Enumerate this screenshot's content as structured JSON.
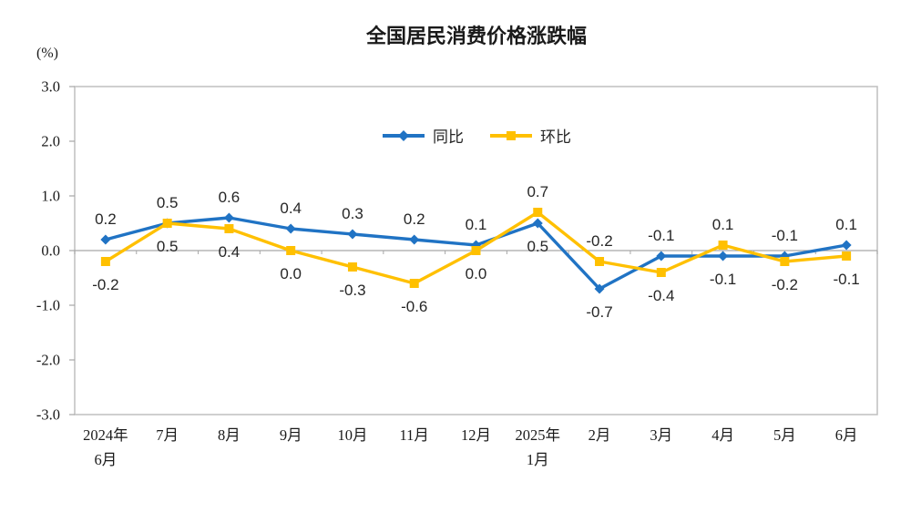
{
  "chart_data": {
    "type": "line",
    "title": "全国居民消费价格涨跌幅",
    "y_axis_unit": "(%)",
    "categories": [
      "2024年\n6月",
      "7月",
      "8月",
      "9月",
      "10月",
      "11月",
      "12月",
      "2025年\n1月",
      "2月",
      "3月",
      "4月",
      "5月",
      "6月"
    ],
    "series": [
      {
        "name": "同比",
        "marker": "diamond",
        "color": "#2073C4",
        "values": [
          0.2,
          0.5,
          0.6,
          0.4,
          0.3,
          0.2,
          0.1,
          0.5,
          -0.7,
          -0.1,
          -0.1,
          -0.1,
          0.1
        ]
      },
      {
        "name": "环比",
        "marker": "square",
        "color": "#FFC000",
        "values": [
          -0.2,
          0.5,
          0.4,
          0.0,
          -0.3,
          -0.6,
          0.0,
          0.7,
          -0.2,
          -0.4,
          0.1,
          -0.2,
          -0.1
        ]
      }
    ],
    "ylim": [
      -3.0,
      3.0
    ],
    "y_tick_labels": [
      "3.0",
      "2.0",
      "1.0",
      "0.0",
      "-1.0",
      "-2.0",
      "-3.0"
    ],
    "grid": false,
    "legend_position": "inside-top-center",
    "colors": {
      "plot_border": "#BFBFBF",
      "axis_line": "#A6A6A6",
      "label_text": "#262626"
    }
  }
}
